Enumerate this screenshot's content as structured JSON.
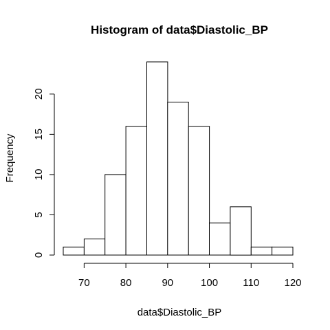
{
  "chart_data": {
    "type": "bar",
    "title": "Histogram of data$Diastolic_BP",
    "xlabel": "data$Diastolic_BP",
    "ylabel": "Frequency",
    "bins": [
      {
        "start": 65,
        "end": 70,
        "count": 1
      },
      {
        "start": 70,
        "end": 75,
        "count": 2
      },
      {
        "start": 75,
        "end": 80,
        "count": 10
      },
      {
        "start": 80,
        "end": 85,
        "count": 16
      },
      {
        "start": 85,
        "end": 90,
        "count": 24
      },
      {
        "start": 90,
        "end": 95,
        "count": 19
      },
      {
        "start": 95,
        "end": 100,
        "count": 16
      },
      {
        "start": 100,
        "end": 105,
        "count": 4
      },
      {
        "start": 105,
        "end": 110,
        "count": 6
      },
      {
        "start": 110,
        "end": 115,
        "count": 1
      },
      {
        "start": 115,
        "end": 120,
        "count": 1
      }
    ],
    "xlim": [
      65,
      120
    ],
    "ylim": [
      0,
      24
    ],
    "x_ticks": [
      "70",
      "80",
      "90",
      "100",
      "110",
      "120"
    ],
    "y_ticks": [
      "0",
      "5",
      "10",
      "15",
      "20"
    ],
    "grid": false,
    "colors": {
      "bar_fill": "#ffffff",
      "bar_stroke": "#000000"
    }
  }
}
